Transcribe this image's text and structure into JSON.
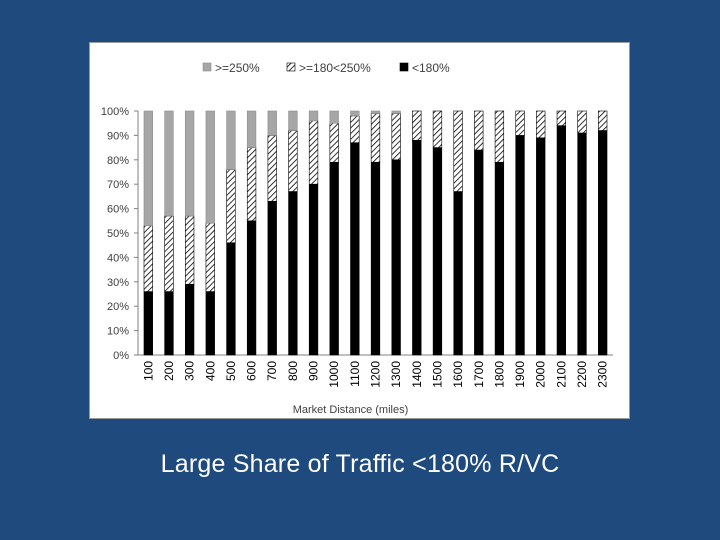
{
  "caption": "Large Share of Traffic <180% R/VC",
  "colors": {
    "background": "#1f4a7d",
    "panel": "#ffffff",
    "series_high": "#a6a6a6",
    "series_mid_hatch": "#000000",
    "series_low": "#000000"
  },
  "chart_data": {
    "type": "bar",
    "stacked": true,
    "percent_stacked": true,
    "title": "",
    "xlabel": "Market Distance (miles)",
    "ylabel": "",
    "ylim": [
      0,
      100
    ],
    "yticks": [
      "0%",
      "10%",
      "20%",
      "30%",
      "40%",
      "50%",
      "60%",
      "70%",
      "80%",
      "90%",
      "100%"
    ],
    "grid": false,
    "legend_position": "top",
    "categories": [
      "100",
      "200",
      "300",
      "400",
      "500",
      "600",
      "700",
      "800",
      "900",
      "1000",
      "1100",
      "1200",
      "1300",
      "1400",
      "1500",
      "1600",
      "1700",
      "1800",
      "1900",
      "2000",
      "2100",
      "2200",
      "2300"
    ],
    "series": [
      {
        "name": "<180%",
        "pattern": "solid-black",
        "values": [
          26,
          26,
          29,
          26,
          46,
          55,
          63,
          67,
          70,
          79,
          87,
          79,
          80,
          88,
          85,
          67,
          84,
          79,
          90,
          89,
          94,
          91,
          92
        ]
      },
      {
        "name": ">=180<250%",
        "pattern": "hatched",
        "values": [
          27,
          31,
          28,
          28,
          30,
          30,
          27,
          25,
          26,
          16,
          11,
          20,
          19,
          12,
          15,
          33,
          16,
          21,
          10,
          11,
          6,
          9,
          8
        ]
      },
      {
        "name": ">=250%",
        "pattern": "solid-gray",
        "values": [
          47,
          43,
          43,
          46,
          24,
          15,
          10,
          8,
          4,
          5,
          2,
          1,
          1,
          0,
          0,
          0,
          0,
          0,
          0,
          0,
          0,
          0,
          0
        ]
      }
    ],
    "legend_order": [
      ">=250%",
      ">=180<250%",
      "<180%"
    ]
  }
}
